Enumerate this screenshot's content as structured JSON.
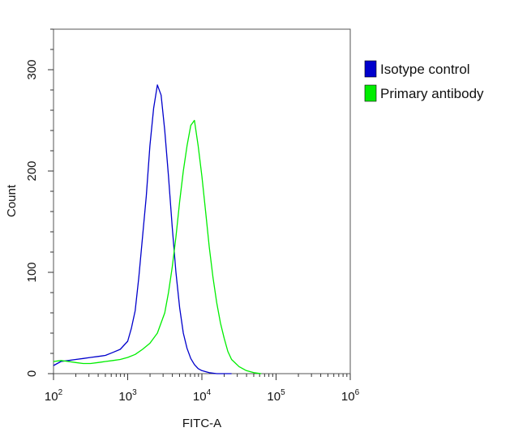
{
  "chart_data": {
    "type": "line",
    "title": "",
    "xlabel": "FITC-A",
    "ylabel": "Count",
    "x_scale": "log",
    "xlim": [
      100,
      1000000
    ],
    "ylim": [
      0,
      340
    ],
    "x_ticks": [
      {
        "base": "10",
        "exp": "2",
        "value": 100
      },
      {
        "base": "10",
        "exp": "3",
        "value": 1000
      },
      {
        "base": "10",
        "exp": "4",
        "value": 10000
      },
      {
        "base": "10",
        "exp": "5",
        "value": 100000
      },
      {
        "base": "10",
        "exp": "6",
        "value": 1000000
      }
    ],
    "y_ticks": [
      {
        "label": "0",
        "value": 0
      },
      {
        "label": "100",
        "value": 100
      },
      {
        "label": "200",
        "value": 200
      },
      {
        "label": "300",
        "value": 300
      }
    ],
    "grid": false,
    "legend_position": "right",
    "series": [
      {
        "name": "Isotype control",
        "color": "#0000cc",
        "x": [
          100,
          126,
          158,
          200,
          251,
          316,
          398,
          501,
          631,
          794,
          1000,
          1122,
          1259,
          1413,
          1585,
          1778,
          1995,
          2239,
          2512,
          2818,
          3162,
          3548,
          3981,
          4467,
          5012,
          5623,
          6310,
          7079,
          7943,
          8913,
          10000,
          12589,
          15849,
          19953,
          25119
        ],
        "values": [
          8,
          12,
          13,
          14,
          15,
          16,
          17,
          18,
          21,
          24,
          32,
          45,
          62,
          95,
          135,
          175,
          225,
          262,
          285,
          275,
          240,
          195,
          145,
          100,
          65,
          40,
          25,
          15,
          9,
          5,
          3,
          1,
          0,
          0,
          0
        ]
      },
      {
        "name": "Primary antibody",
        "color": "#00ee00",
        "x": [
          100,
          126,
          158,
          200,
          251,
          316,
          398,
          501,
          631,
          794,
          1000,
          1259,
          1585,
          1995,
          2512,
          3162,
          3548,
          3981,
          4467,
          5012,
          5623,
          6310,
          7079,
          7943,
          8913,
          10000,
          11220,
          12589,
          14125,
          15849,
          17783,
          19953,
          22387,
          25119,
          31623,
          39811,
          50119,
          63096
        ],
        "values": [
          12,
          13,
          12,
          11,
          10,
          10,
          11,
          12,
          13,
          14,
          16,
          19,
          24,
          30,
          40,
          60,
          80,
          105,
          135,
          170,
          200,
          225,
          245,
          250,
          225,
          195,
          160,
          125,
          95,
          70,
          50,
          35,
          22,
          14,
          7,
          3,
          1,
          0
        ]
      }
    ]
  }
}
